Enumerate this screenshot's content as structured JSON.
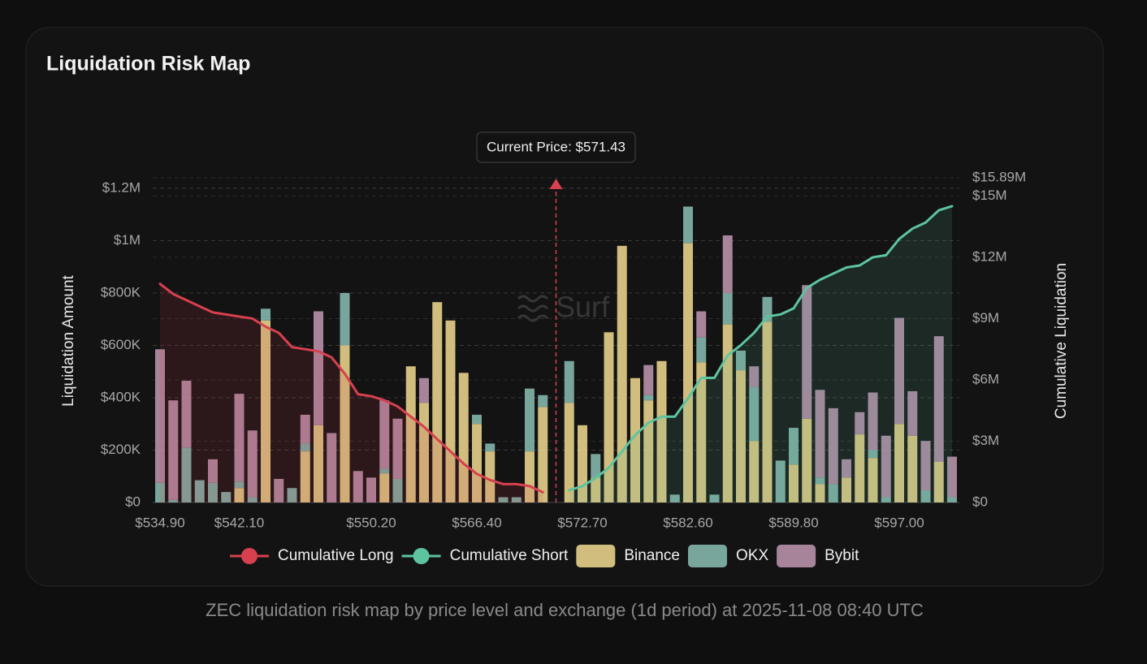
{
  "chart_data": {
    "type": "bar",
    "stacked": true,
    "title": "Liquidation Risk Map",
    "caption": "ZEC liquidation risk map by price level and exchange (1d period) at 2025-11-08 08:40 UTC",
    "annotation": "Current Price: $571.43",
    "watermark": "Surf",
    "y_label": "Liquidation Amount",
    "y2_label": "Cumulative Liquidation",
    "categories": [
      "$534.90",
      null,
      null,
      null,
      null,
      null,
      "$542.10",
      null,
      null,
      null,
      null,
      null,
      null,
      null,
      null,
      null,
      "$550.20",
      null,
      null,
      null,
      null,
      null,
      null,
      null,
      "$566.40",
      null,
      null,
      null,
      null,
      null,
      null,
      null,
      "$572.70",
      null,
      null,
      null,
      null,
      null,
      null,
      null,
      "$582.60",
      null,
      null,
      null,
      null,
      null,
      null,
      null,
      "$589.80",
      null,
      null,
      null,
      null,
      null,
      null,
      null,
      "$597.00",
      null,
      null,
      null,
      null
    ],
    "ylim": [
      0,
      1240000
    ],
    "yticks": [
      {
        "value": 0,
        "label": "$0"
      },
      {
        "value": 200000,
        "label": "$200K"
      },
      {
        "value": 400000,
        "label": "$400K"
      },
      {
        "value": 600000,
        "label": "$600K"
      },
      {
        "value": 800000,
        "label": "$800K"
      },
      {
        "value": 1000000,
        "label": "$1M"
      },
      {
        "value": 1200000,
        "label": "$1.2M"
      }
    ],
    "y2lim": [
      0,
      15890000
    ],
    "y2ticks": [
      {
        "value": 0,
        "label": "$0"
      },
      {
        "value": 3000000,
        "label": "$3M"
      },
      {
        "value": 6000000,
        "label": "$6M"
      },
      {
        "value": 9000000,
        "label": "$9M"
      },
      {
        "value": 12000000,
        "label": "$12M"
      },
      {
        "value": 15000000,
        "label": "$15M"
      },
      {
        "value": 15890000,
        "label": "$15.89M"
      }
    ],
    "grid": true,
    "series": [
      {
        "name": "Cumulative Long",
        "type": "line",
        "axis": "y2",
        "color": "#d7404f",
        "values": [
          10700000,
          10200000,
          9900000,
          9600000,
          9300000,
          9200000,
          9100000,
          9000000,
          8600000,
          8300000,
          7600000,
          7500000,
          7400000,
          7100000,
          6300000,
          5300000,
          5200000,
          5000000,
          4700000,
          4200000,
          3700000,
          3100000,
          2500000,
          1900000,
          1400000,
          1100000,
          900000,
          900000,
          800000,
          500000,
          null,
          null,
          null,
          null,
          null,
          null,
          null,
          null,
          null,
          null,
          null,
          null,
          null,
          null,
          null,
          null,
          null,
          null,
          null,
          null,
          null,
          null,
          null,
          null,
          null,
          null,
          null,
          null,
          null,
          null,
          null
        ]
      },
      {
        "name": "Cumulative Short",
        "type": "line",
        "axis": "y2",
        "color": "#5ec4a0",
        "values": [
          null,
          null,
          null,
          null,
          null,
          null,
          null,
          null,
          null,
          null,
          null,
          null,
          null,
          null,
          null,
          null,
          null,
          null,
          null,
          null,
          null,
          null,
          null,
          null,
          null,
          null,
          null,
          null,
          null,
          null,
          null,
          600000,
          800000,
          1200000,
          1700000,
          2500000,
          3300000,
          3900000,
          4200000,
          4200000,
          5100000,
          6100000,
          6100000,
          7200000,
          7700000,
          8300000,
          9100000,
          9200000,
          9500000,
          10500000,
          10900000,
          11200000,
          11500000,
          11600000,
          12000000,
          12100000,
          12900000,
          13400000,
          13700000,
          14300000,
          14500000
        ]
      },
      {
        "name": "Binance",
        "type": "bar",
        "color": "#e2cc87",
        "values": [
          0,
          0,
          0,
          0,
          0,
          0,
          55000,
          0,
          695000,
          0,
          0,
          195000,
          295000,
          0,
          600000,
          0,
          0,
          110000,
          0,
          520000,
          380000,
          765000,
          695000,
          495000,
          300000,
          195000,
          0,
          0,
          195000,
          365000,
          null,
          380000,
          295000,
          95000,
          650000,
          980000,
          475000,
          390000,
          540000,
          0,
          990000,
          535000,
          0,
          680000,
          505000,
          235000,
          690000,
          0,
          145000,
          320000,
          70000,
          0,
          95000,
          260000,
          170000,
          0,
          300000,
          255000,
          0,
          155000,
          0
        ]
      },
      {
        "name": "OKX",
        "type": "bar",
        "color": "#82b3a8",
        "values": [
          75000,
          10000,
          210000,
          85000,
          75000,
          40000,
          25000,
          20000,
          45000,
          0,
          55000,
          30000,
          0,
          0,
          200000,
          0,
          0,
          20000,
          90000,
          0,
          0,
          0,
          0,
          0,
          35000,
          30000,
          20000,
          20000,
          240000,
          45000,
          null,
          160000,
          0,
          90000,
          0,
          0,
          0,
          20000,
          0,
          30000,
          140000,
          95000,
          30000,
          120000,
          75000,
          205000,
          95000,
          160000,
          140000,
          0,
          25000,
          70000,
          0,
          0,
          30000,
          20000,
          0,
          0,
          45000,
          0,
          20000
        ]
      },
      {
        "name": "Bybit",
        "type": "bar",
        "color": "#b48ea6",
        "values": [
          510000,
          380000,
          255000,
          0,
          90000,
          0,
          335000,
          255000,
          0,
          90000,
          0,
          110000,
          435000,
          265000,
          0,
          120000,
          95000,
          260000,
          230000,
          0,
          95000,
          0,
          0,
          0,
          0,
          0,
          0,
          0,
          0,
          0,
          null,
          0,
          0,
          0,
          0,
          0,
          0,
          115000,
          0,
          0,
          0,
          100000,
          0,
          220000,
          0,
          80000,
          0,
          0,
          0,
          510000,
          335000,
          290000,
          70000,
          85000,
          220000,
          235000,
          405000,
          170000,
          190000,
          480000,
          155000
        ]
      }
    ]
  }
}
